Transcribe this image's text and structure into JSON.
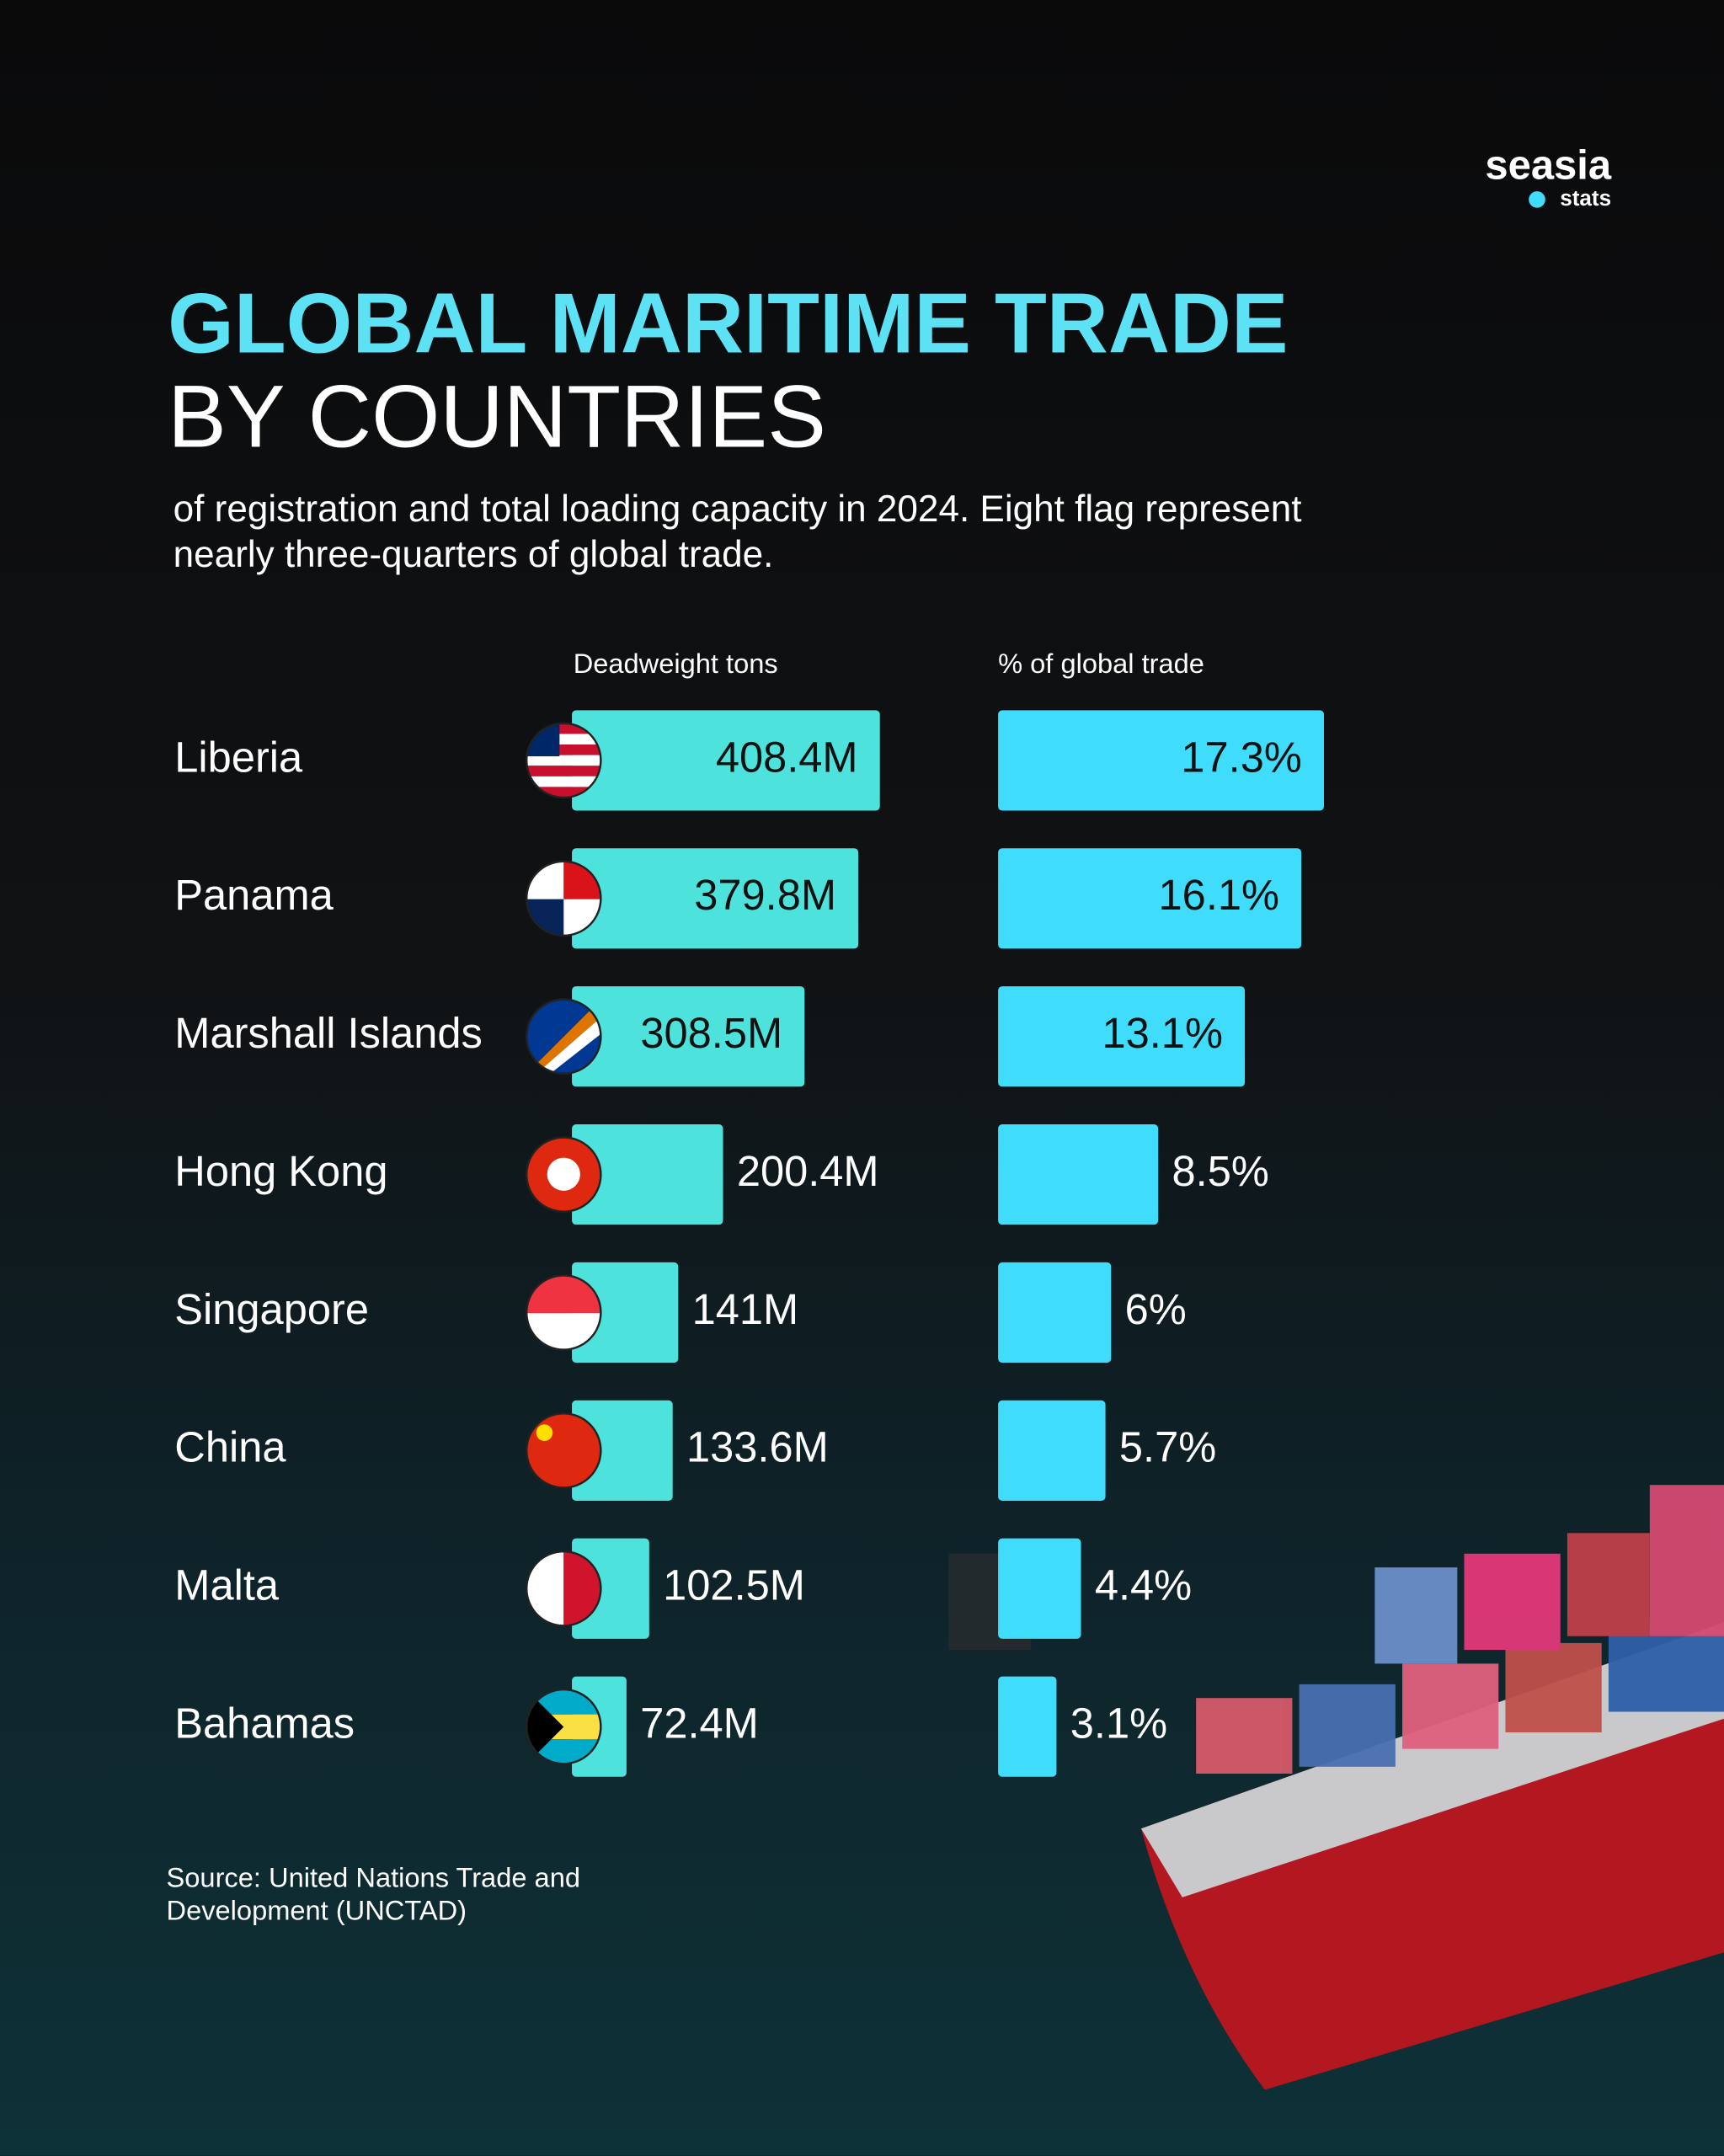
{
  "chart_data": {
    "type": "bar",
    "brand": {
      "name": "seasia",
      "sub": "stats"
    },
    "title": "GLOBAL MARITIME TRADE",
    "title_line2": "BY COUNTRIES",
    "subtitle": [
      "of registration and total loading capacity in 2024. Eight flag represent",
      "nearly three-quarters of global trade."
    ],
    "categories": [
      "Liberia",
      "Panama",
      "Marshall Islands",
      "Hong Kong",
      "Singapore",
      "China",
      "Malta",
      "Bahamas"
    ],
    "series": [
      {
        "name": "Deadweight tons",
        "color": "#4de3dc",
        "values": [
          408.4,
          379.8,
          308.5,
          200.4,
          141,
          133.6,
          102.5,
          72.4
        ],
        "value_labels": [
          "408.4M",
          "379.8M",
          "308.5M",
          "200.4M",
          "141M",
          "133.6M",
          "102.5M",
          "72.4M"
        ]
      },
      {
        "name": "% of global trade",
        "color": "#3fdcfb",
        "values": [
          17.3,
          16.1,
          13.1,
          8.5,
          6,
          5.7,
          4.4,
          3.1
        ],
        "value_labels": [
          "17.3%",
          "16.1%",
          "13.1%",
          "8.5%",
          "6%",
          "5.7%",
          "4.4%",
          "3.1%"
        ]
      }
    ],
    "source": [
      "Source: United Nations Trade and",
      "Development (UNCTAD)"
    ]
  }
}
